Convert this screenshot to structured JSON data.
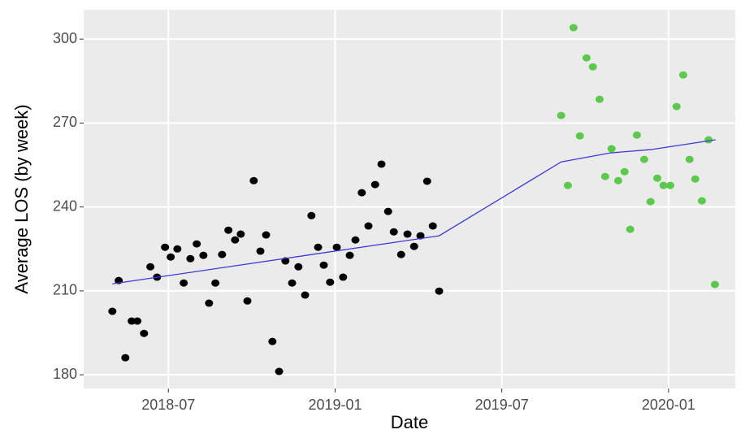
{
  "chart_data": {
    "type": "scatter",
    "xlabel": "Date",
    "ylabel": "Average LOS (by week)",
    "xlim": [
      2018.246,
      2020.2
    ],
    "ylim": [
      175.1,
      310.5
    ],
    "xticks": [
      {
        "value": 2018.5,
        "label": "2018-07"
      },
      {
        "value": 2019.0,
        "label": "2019-01"
      },
      {
        "value": 2019.5,
        "label": "2019-07"
      },
      {
        "value": 2020.0,
        "label": "2020-01"
      }
    ],
    "yticks": [
      180,
      210,
      240,
      270,
      300
    ],
    "grid": true,
    "series": [
      {
        "type": "scatter",
        "color": "#000000",
        "x": [
          2018.332,
          2018.351,
          2018.371,
          2018.39,
          2018.407,
          2018.427,
          2018.446,
          2018.466,
          2018.49,
          2018.507,
          2018.527,
          2018.546,
          2018.566,
          2018.585,
          2018.605,
          2018.622,
          2018.641,
          2018.661,
          2018.68,
          2018.7,
          2018.717,
          2018.737,
          2018.756,
          2018.776,
          2018.793,
          2018.812,
          2018.832,
          2018.851,
          2018.871,
          2018.89,
          2018.91,
          2018.929,
          2018.949,
          2018.966,
          2018.985,
          2019.005,
          2019.024,
          2019.044,
          2019.061,
          2019.08,
          2019.1,
          2019.12,
          2019.139,
          2019.159,
          2019.176,
          2019.198,
          2019.217,
          2019.237,
          2019.256,
          2019.276,
          2019.293,
          2019.312
        ],
        "values": [
          202.7,
          213.7,
          186.1,
          199.2,
          199.2,
          194.8,
          218.6,
          214.9,
          225.6,
          222.1,
          225.0,
          212.8,
          221.5,
          226.8,
          222.7,
          205.6,
          212.8,
          223.0,
          231.7,
          228.2,
          230.3,
          206.4,
          249.4,
          224.2,
          230.0,
          191.9,
          181.2,
          220.7,
          212.8,
          218.6,
          208.5,
          236.9,
          225.6,
          219.2,
          213.1,
          225.6,
          214.9,
          222.7,
          228.2,
          245.1,
          233.2,
          248.0,
          255.3,
          238.4,
          231.1,
          223.0,
          230.3,
          225.9,
          229.7,
          249.2,
          233.2,
          209.9
        ]
      },
      {
        "type": "scatter",
        "color": "#5cc94c",
        "x": [
          2019.678,
          2019.698,
          2019.715,
          2019.734,
          2019.754,
          2019.773,
          2019.793,
          2019.81,
          2019.829,
          2019.849,
          2019.868,
          2019.885,
          2019.905,
          2019.927,
          2019.946,
          2019.966,
          2019.985,
          2020.005,
          2020.024,
          2020.044,
          2020.063,
          2020.08,
          2020.1,
          2020.12,
          2020.139
        ],
        "values": [
          272.7,
          247.7,
          304.1,
          265.4,
          293.3,
          290.1,
          278.5,
          250.9,
          260.8,
          249.4,
          252.6,
          232.0,
          265.7,
          257.0,
          241.9,
          250.3,
          247.7,
          247.7,
          275.9,
          287.2,
          257.0,
          250.0,
          242.2,
          264.0,
          212.3
        ]
      },
      {
        "type": "line",
        "color": "#3a3ad8",
        "x": [
          2018.332,
          2019.312,
          2019.678,
          2019.824,
          2019.946,
          2020.141
        ],
        "values": [
          212.5,
          229.7,
          256.1,
          259.3,
          260.5,
          264.0
        ]
      }
    ]
  }
}
